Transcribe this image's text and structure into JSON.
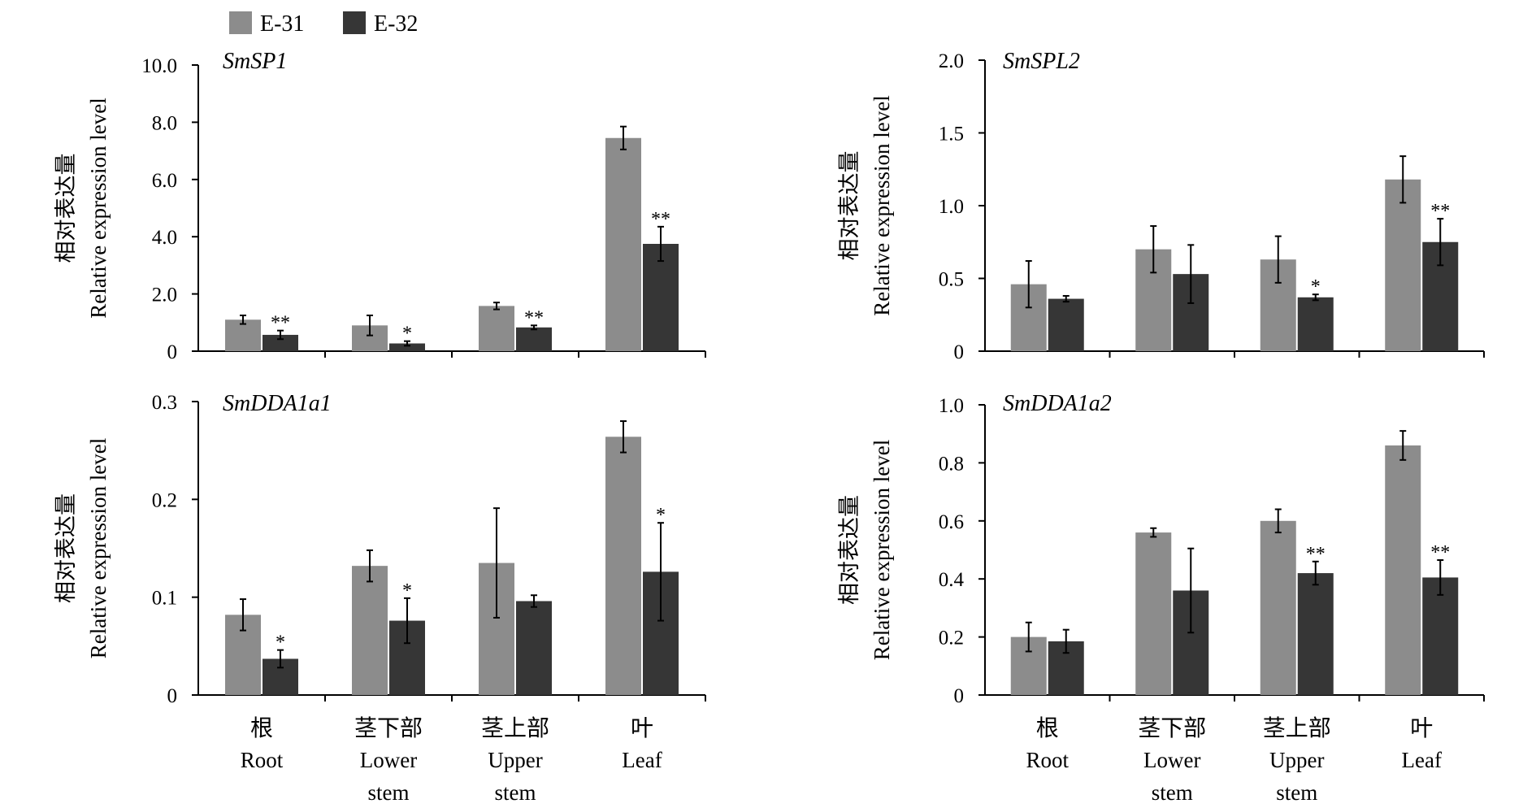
{
  "legend": [
    {
      "name": "E-31",
      "color": "#8c8c8c"
    },
    {
      "name": "E-32",
      "color": "#363636"
    }
  ],
  "chart_data": [
    {
      "type": "bar",
      "title": "SmSP1",
      "ylabel_cn": "相对表达量",
      "ylabel_en": "Relative expression level",
      "ylim": [
        0,
        10
      ],
      "yticks": [
        "0",
        "2.0",
        "4.0",
        "6.0",
        "8.0",
        "10.0"
      ],
      "categories": [
        "Root",
        "Lower stem",
        "Upper stem",
        "Leaf"
      ],
      "series": [
        {
          "name": "E-31",
          "values": [
            1.1,
            0.9,
            1.58,
            7.45
          ],
          "errors": [
            0.15,
            0.35,
            0.12,
            0.4
          ],
          "sig": [
            "",
            "",
            "",
            ""
          ]
        },
        {
          "name": "E-32",
          "values": [
            0.57,
            0.27,
            0.83,
            3.75
          ],
          "errors": [
            0.15,
            0.08,
            0.07,
            0.6
          ],
          "sig": [
            "**",
            "*",
            "**",
            "**"
          ]
        }
      ]
    },
    {
      "type": "bar",
      "title": "SmSPL2",
      "ylabel_cn": "相对表达量",
      "ylabel_en": "Relative expression level",
      "ylim": [
        0,
        2.0
      ],
      "yticks": [
        "0",
        "0.5",
        "1.0",
        "1.5",
        "2.0"
      ],
      "categories": [
        "Root",
        "Lower stem",
        "Upper stem",
        "Leaf"
      ],
      "series": [
        {
          "name": "E-31",
          "values": [
            0.46,
            0.7,
            0.63,
            1.18
          ],
          "errors": [
            0.16,
            0.16,
            0.16,
            0.16
          ],
          "sig": [
            "",
            "",
            "",
            ""
          ]
        },
        {
          "name": "E-32",
          "values": [
            0.36,
            0.53,
            0.37,
            0.75
          ],
          "errors": [
            0.02,
            0.2,
            0.02,
            0.16
          ],
          "sig": [
            "",
            "",
            "*",
            "**"
          ]
        }
      ]
    },
    {
      "type": "bar",
      "title": "SmDDA1a1",
      "ylabel_cn": "相对表达量",
      "ylabel_en": "Relative expression level",
      "ylim": [
        0,
        0.3
      ],
      "yticks": [
        "0",
        "0.1",
        "0.2",
        "0.3"
      ],
      "categories": [
        "Root",
        "Lower stem",
        "Upper stem",
        "Leaf"
      ],
      "series": [
        {
          "name": "E-31",
          "values": [
            0.082,
            0.132,
            0.135,
            0.264
          ],
          "errors": [
            0.016,
            0.016,
            0.056,
            0.016
          ],
          "sig": [
            "",
            "",
            "",
            ""
          ]
        },
        {
          "name": "E-32",
          "values": [
            0.037,
            0.076,
            0.096,
            0.126
          ],
          "errors": [
            0.009,
            0.023,
            0.006,
            0.05
          ],
          "sig": [
            "*",
            "*",
            "",
            "*"
          ]
        }
      ]
    },
    {
      "type": "bar",
      "title": "SmDDA1a2",
      "ylabel_cn": "相对表达量",
      "ylabel_en": "Relative expression level",
      "ylim": [
        0,
        1.0
      ],
      "yticks": [
        "0",
        "0.2",
        "0.4",
        "0.6",
        "0.8",
        "1.0"
      ],
      "categories": [
        "Root",
        "Lower stem",
        "Upper stem",
        "Leaf"
      ],
      "series": [
        {
          "name": "E-31",
          "values": [
            0.2,
            0.56,
            0.6,
            0.86
          ],
          "errors": [
            0.05,
            0.015,
            0.04,
            0.05
          ],
          "sig": [
            "",
            "",
            "",
            ""
          ]
        },
        {
          "name": "E-32",
          "values": [
            0.185,
            0.36,
            0.42,
            0.405
          ],
          "errors": [
            0.04,
            0.145,
            0.04,
            0.06
          ],
          "sig": [
            "",
            "",
            "**",
            "**"
          ]
        }
      ]
    }
  ],
  "xaxis_labels": [
    [
      {
        "cn": "根",
        "en": [
          "Root"
        ]
      },
      {
        "cn": "茎下部",
        "en": [
          "Lower",
          "stem"
        ]
      },
      {
        "cn": "茎上部",
        "en": [
          "Upper",
          "stem"
        ]
      },
      {
        "cn": "叶",
        "en": [
          "Leaf"
        ]
      }
    ],
    [
      {
        "cn": "根",
        "en": [
          "Root"
        ]
      },
      {
        "cn": "茎下部",
        "en": [
          "Lower",
          "stem"
        ]
      },
      {
        "cn": "茎上部",
        "en": [
          "Upper",
          "stem"
        ]
      },
      {
        "cn": "叶",
        "en": [
          "Leaf"
        ]
      }
    ]
  ]
}
